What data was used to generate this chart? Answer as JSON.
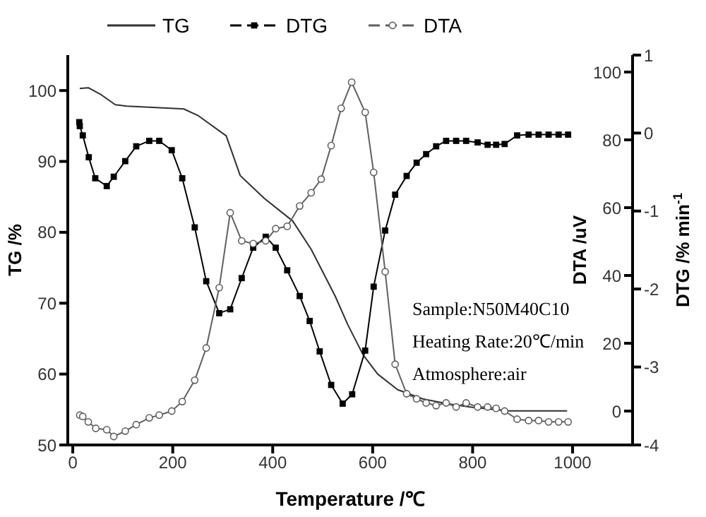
{
  "chart_data": {
    "type": "line",
    "xlabel": "Temperature  /℃",
    "ylabel": "TG /%",
    "y2label": "DTA /uV",
    "y3label": "DTG /% min$^{-1}$",
    "xlim": [
      -10,
      1120
    ],
    "xticks": [
      0,
      200,
      400,
      600,
      800,
      1000
    ],
    "ylim": [
      50,
      105
    ],
    "yticks": [
      50,
      60,
      70,
      80,
      90,
      100
    ],
    "y2lim": [
      -10,
      105
    ],
    "y2ticks": [
      0,
      20,
      40,
      60,
      80,
      100
    ],
    "y3lim": [
      -4,
      1
    ],
    "y3ticks": [
      -4,
      -3,
      -2,
      -1,
      0,
      1
    ],
    "legend": "top",
    "series": [
      {
        "name": "TG",
        "color": "#303030",
        "marker": "none",
        "x": [
          14,
          31,
          57,
          85,
          108,
          222,
          250,
          307,
          335,
          383,
          440,
          477,
          525,
          550,
          581,
          610,
          650,
          700,
          750,
          800,
          870,
          989
        ],
        "values": [
          100.3,
          100.4,
          99.4,
          98.0,
          97.8,
          97.4,
          96.5,
          93.6,
          88.0,
          84.8,
          81.6,
          77.6,
          71.0,
          67.0,
          62.7,
          60.0,
          57.8,
          56.5,
          55.8,
          55.3,
          54.8,
          54.8
        ]
      },
      {
        "name": "DTG",
        "color": "#000000",
        "marker": "square",
        "axis": "y3",
        "x": [
          13,
          14,
          20,
          32,
          45,
          68,
          82,
          105,
          127,
          153,
          173,
          198,
          219,
          244,
          267,
          293,
          315,
          338,
          361,
          386,
          406,
          429,
          454,
          474,
          494,
          517,
          540,
          559,
          585,
          602,
          625,
          645,
          668,
          688,
          707,
          727,
          747,
          767,
          787,
          810,
          830,
          847,
          864,
          889,
          912,
          932,
          952,
          972,
          991
        ],
        "values": [
          0.14,
          0.09,
          -0.03,
          -0.31,
          -0.58,
          -0.68,
          -0.56,
          -0.36,
          -0.17,
          -0.1,
          -0.1,
          -0.22,
          -0.58,
          -1.21,
          -1.9,
          -2.31,
          -2.26,
          -1.86,
          -1.47,
          -1.33,
          -1.47,
          -1.76,
          -2.09,
          -2.41,
          -2.8,
          -3.23,
          -3.47,
          -3.35,
          -2.79,
          -1.97,
          -1.25,
          -0.79,
          -0.55,
          -0.38,
          -0.27,
          -0.17,
          -0.1,
          -0.1,
          -0.1,
          -0.12,
          -0.15,
          -0.15,
          -0.14,
          -0.03,
          -0.02,
          -0.02,
          -0.02,
          -0.02,
          -0.02
        ]
      },
      {
        "name": "DTA",
        "color": "#606060",
        "marker": "circle",
        "axis": "y2",
        "x": [
          14,
          20,
          31,
          46,
          68,
          82,
          105,
          127,
          153,
          173,
          198,
          219,
          244,
          267,
          293,
          315,
          338,
          361,
          386,
          406,
          429,
          454,
          477,
          497,
          517,
          537,
          558,
          585,
          602,
          625,
          645,
          668,
          688,
          707,
          727,
          747,
          767,
          787,
          810,
          830,
          847,
          864,
          889,
          912,
          932,
          952,
          972,
          991
        ],
        "values": [
          -1.2,
          -1.6,
          -3.2,
          -5.1,
          -5.5,
          -7.5,
          -5.9,
          -4.0,
          -2.0,
          -1.2,
          0,
          2.8,
          9.1,
          18.6,
          36.4,
          58.5,
          50.2,
          49.4,
          50.2,
          53.8,
          54.5,
          60.5,
          64.4,
          68.4,
          78.3,
          89.3,
          97.0,
          88.1,
          70.4,
          41.1,
          13.8,
          5.1,
          3.6,
          2.4,
          1.6,
          2.4,
          1.2,
          2.4,
          1.2,
          1.2,
          0.8,
          0,
          -2.4,
          -2.8,
          -2.8,
          -3.2,
          -3.2,
          -3.2
        ]
      }
    ],
    "annotations": [
      "Sample:N50M40C10",
      "Heating Rate:20℃/min",
      "Atmosphere:air"
    ]
  }
}
